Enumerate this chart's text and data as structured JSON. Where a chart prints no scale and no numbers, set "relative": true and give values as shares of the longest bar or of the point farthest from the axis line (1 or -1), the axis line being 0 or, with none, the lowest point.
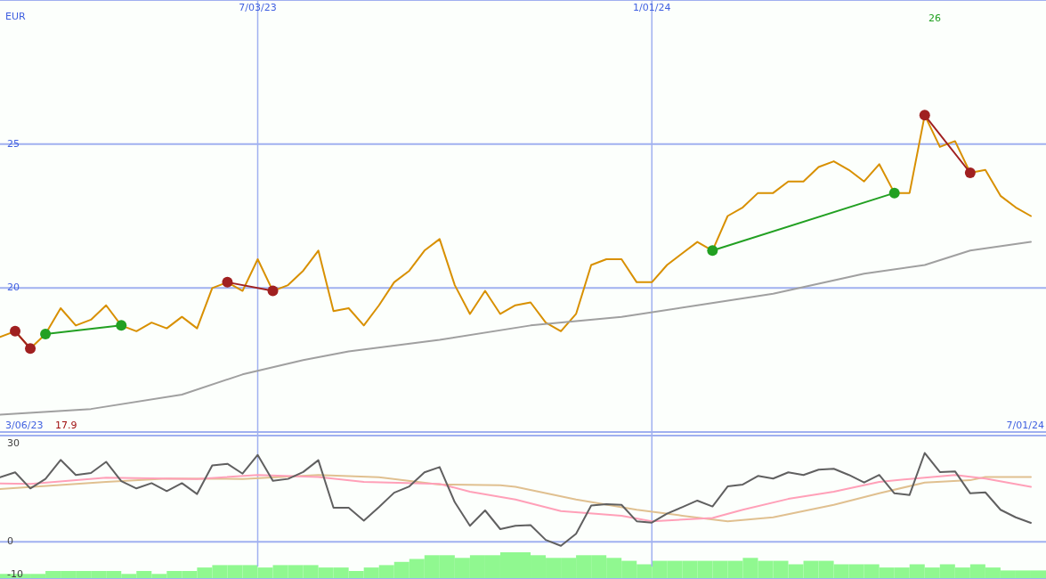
{
  "chart_data": [
    {
      "type": "line",
      "ylabel": "EUR",
      "x": [
        "2023-03-06",
        "2023-03-13",
        "2023-03-20",
        "2023-03-27",
        "2023-04-03",
        "2023-04-10",
        "2023-04-17",
        "2023-04-24",
        "2023-05-01",
        "2023-05-08",
        "2023-05-15",
        "2023-05-22",
        "2023-05-29",
        "2023-06-05",
        "2023-06-12",
        "2023-06-19",
        "2023-06-26",
        "2023-07-03",
        "2023-07-10",
        "2023-07-17",
        "2023-07-24",
        "2023-07-31",
        "2023-08-07",
        "2023-08-14",
        "2023-08-21",
        "2023-08-28",
        "2023-09-04",
        "2023-09-11",
        "2023-09-18",
        "2023-09-25",
        "2023-10-02",
        "2023-10-09",
        "2023-10-16",
        "2023-10-23",
        "2023-10-30",
        "2023-11-06",
        "2023-11-13",
        "2023-11-20",
        "2023-11-27",
        "2023-12-04",
        "2023-12-11",
        "2023-12-18",
        "2023-12-25",
        "2024-01-01",
        "2024-01-08",
        "2024-01-15",
        "2024-01-22",
        "2024-01-29",
        "2024-02-05",
        "2024-02-12",
        "2024-02-19",
        "2024-02-26",
        "2024-03-04",
        "2024-03-11",
        "2024-03-18",
        "2024-03-25",
        "2024-04-01",
        "2024-04-08",
        "2024-04-15",
        "2024-04-22",
        "2024-04-29",
        "2024-05-06",
        "2024-05-13",
        "2024-05-20",
        "2024-05-27",
        "2024-06-03",
        "2024-06-10",
        "2024-06-17",
        "2024-06-24"
      ],
      "series": [
        {
          "color": "#d89000",
          "values": [
            18.3,
            18.5,
            17.9,
            18.4,
            19.3,
            18.7,
            18.9,
            19.4,
            18.7,
            18.5,
            18.8,
            18.6,
            19.0,
            18.6,
            20.0,
            20.2,
            19.9,
            21.0,
            19.9,
            20.1,
            20.6,
            21.3,
            19.2,
            19.3,
            18.7,
            19.4,
            20.2,
            20.6,
            21.3,
            21.7,
            20.1,
            19.1,
            19.9,
            19.1,
            19.4,
            19.5,
            18.8,
            18.5,
            19.1,
            20.8,
            21.0,
            21.0,
            20.2,
            20.2,
            20.8,
            21.2,
            21.6,
            21.3,
            22.5,
            22.8,
            23.3,
            23.3,
            23.7,
            23.7,
            24.2,
            24.4,
            24.1,
            23.7,
            24.3,
            23.3,
            23.3,
            26.0,
            24.9,
            25.1,
            24.0,
            24.1,
            23.2,
            22.8,
            22.5
          ]
        },
        {
          "color": "#a0a0a0",
          "x": [
            "2023-03-06",
            "2023-04-17",
            "2023-05-29",
            "2023-06-26",
            "2023-07-24",
            "2023-08-14",
            "2023-09-25",
            "2023-11-06",
            "2023-12-18",
            "2024-01-22",
            "2024-02-26",
            "2024-04-08",
            "2024-05-06",
            "2024-05-27",
            "2024-06-24"
          ],
          "values": [
            15.6,
            15.8,
            16.3,
            17.0,
            17.5,
            17.8,
            18.2,
            18.7,
            19.0,
            19.4,
            19.8,
            20.5,
            20.8,
            21.3,
            21.6
          ]
        },
        {
          "color": "#22a022",
          "marker": "circle",
          "x": [
            "2023-03-27",
            "2023-05-01",
            "2023-05-08",
            "2024-01-29",
            "2024-04-22"
          ],
          "values": [
            18.4,
            18.7,
            null,
            21.3,
            23.3
          ]
        },
        {
          "color": "#a02020",
          "marker": "circle",
          "x": [
            "2023-03-13",
            "2023-03-20",
            "2023-03-27",
            "2023-06-19",
            "2023-07-10",
            "2023-07-17",
            "2024-05-06",
            "2024-05-27"
          ],
          "values": [
            18.5,
            17.9,
            null,
            20.2,
            19.9,
            null,
            26.0,
            24.0
          ]
        }
      ],
      "xlim": [
        "2023-03-06",
        "2024-07-01"
      ],
      "xticks": [
        {
          "value": "2023-07-03",
          "label": "7/03/23"
        },
        {
          "value": "2024-01-01",
          "label": "1/01/24"
        }
      ],
      "ylim": [
        15,
        30
      ],
      "yticks": [
        20,
        25
      ],
      "grid": true,
      "annotations": [
        "3/06/23",
        "17.9",
        "26",
        "7/01/24"
      ]
    },
    {
      "type": "line",
      "series": [
        {
          "color": "#e0c090",
          "x": [
            "2023-03-06",
            "2023-04-24",
            "2023-05-22",
            "2023-06-26",
            "2023-07-31",
            "2023-08-28",
            "2023-09-25",
            "2023-10-23",
            "2023-10-30",
            "2023-11-27",
            "2023-12-25",
            "2024-01-15",
            "2024-02-05",
            "2024-02-26",
            "2024-03-25",
            "2024-04-15",
            "2024-05-06",
            "2024-05-27",
            "2024-06-03",
            "2024-06-24"
          ],
          "values": [
            16.1,
            18.3,
            19.3,
            19.2,
            20.4,
            19.7,
            17.5,
            17.3,
            16.8,
            12.9,
            9.8,
            8.0,
            6.3,
            7.5,
            11.3,
            14.8,
            18.1,
            18.8,
            19.8,
            19.8
          ]
        },
        {
          "color": "#ffa0b8",
          "x": [
            "2023-03-06",
            "2023-03-20",
            "2023-04-24",
            "2023-06-05",
            "2023-07-03",
            "2023-07-31",
            "2023-08-21",
            "2023-09-25",
            "2023-10-09",
            "2023-10-30",
            "2023-11-20",
            "2023-12-18",
            "2024-01-01",
            "2024-01-29",
            "2024-02-12",
            "2024-03-04",
            "2024-03-25",
            "2024-04-15",
            "2024-05-06",
            "2024-05-20",
            "2024-06-03",
            "2024-06-24"
          ],
          "values": [
            17.8,
            17.7,
            19.6,
            19.2,
            20.4,
            19.8,
            18.3,
            17.7,
            15.3,
            12.9,
            9.4,
            8.0,
            6.3,
            7.3,
            9.8,
            13.1,
            15.3,
            18.3,
            19.6,
            20.4,
            19.3,
            16.8
          ]
        },
        {
          "color": "#606060",
          "x": [
            "2023-03-06",
            "2023-03-13",
            "2023-03-20",
            "2023-03-27",
            "2023-04-03",
            "2023-04-10",
            "2023-04-17",
            "2023-04-24",
            "2023-05-01",
            "2023-05-08",
            "2023-05-15",
            "2023-05-22",
            "2023-05-29",
            "2023-06-05",
            "2023-06-12",
            "2023-06-19",
            "2023-06-26",
            "2023-07-03",
            "2023-07-10",
            "2023-07-17",
            "2023-07-24",
            "2023-07-31",
            "2023-08-07",
            "2023-08-14",
            "2023-08-21",
            "2023-08-28",
            "2023-09-04",
            "2023-09-11",
            "2023-09-18",
            "2023-09-25",
            "2023-10-02",
            "2023-10-09",
            "2023-10-16",
            "2023-10-23",
            "2023-10-30",
            "2023-11-06",
            "2023-11-13",
            "2023-11-20",
            "2023-11-27",
            "2023-12-04",
            "2023-12-11",
            "2023-12-18",
            "2023-12-25",
            "2024-01-01",
            "2024-01-08",
            "2024-01-15",
            "2024-01-22",
            "2024-01-29",
            "2024-02-05",
            "2024-02-12",
            "2024-02-19",
            "2024-02-26",
            "2024-03-04",
            "2024-03-11",
            "2024-03-18",
            "2024-03-25",
            "2024-04-01",
            "2024-04-08",
            "2024-04-15",
            "2024-04-22",
            "2024-04-29",
            "2024-05-06",
            "2024-05-13",
            "2024-05-20",
            "2024-05-27",
            "2024-06-03",
            "2024-06-10",
            "2024-06-17",
            "2024-06-24"
          ],
          "values": [
            19.7,
            21.2,
            16.3,
            19.2,
            25.0,
            20.4,
            21.0,
            24.4,
            18.5,
            16.3,
            17.9,
            15.5,
            17.9,
            14.6,
            23.3,
            23.8,
            20.8,
            26.5,
            18.6,
            19.2,
            21.3,
            24.9,
            10.4,
            10.4,
            6.5,
            10.6,
            15.0,
            16.9,
            21.2,
            22.8,
            12.1,
            4.9,
            9.6,
            3.9,
            4.9,
            5.1,
            0.6,
            -1.2,
            2.5,
            11.1,
            11.5,
            11.3,
            6.3,
            5.9,
            8.6,
            10.6,
            12.6,
            10.8,
            16.9,
            17.5,
            20.1,
            19.3,
            21.2,
            20.4,
            22.0,
            22.3,
            20.4,
            18.1,
            20.4,
            14.8,
            14.3,
            27.1,
            21.3,
            21.5,
            14.8,
            15.1,
            9.8,
            7.5,
            5.8
          ]
        }
      ],
      "xlim": [
        "2023-03-06",
        "2024-07-01"
      ],
      "ylim": [
        -11.3,
        32.4
      ],
      "yticks": [
        30,
        0,
        -10
      ],
      "tick_labels": "y",
      "ref_lines": [
        {
          "axis": "y",
          "value": 0
        }
      ]
    },
    {
      "type": "bar",
      "relative": true,
      "color": "#90f890",
      "categories": [
        null,
        null,
        null,
        null,
        null,
        null,
        null,
        null,
        null,
        null,
        null,
        null,
        null,
        null,
        null,
        null,
        null,
        null,
        null,
        null,
        null,
        null,
        null,
        null,
        null,
        null,
        null,
        null,
        null,
        null,
        null,
        null,
        null,
        null,
        null,
        null,
        null,
        null,
        null,
        null,
        null,
        null,
        null,
        null,
        null,
        null,
        null,
        null,
        null,
        null,
        null,
        null,
        null,
        null,
        null,
        null,
        null,
        null,
        null,
        null,
        null,
        null,
        null,
        null,
        null,
        null,
        null,
        null,
        null
      ],
      "values": [
        0.19,
        0.19,
        0.19,
        0.3,
        0.3,
        0.3,
        0.3,
        0.3,
        0.19,
        0.3,
        0.19,
        0.3,
        0.3,
        0.43,
        0.52,
        0.52,
        0.52,
        0.43,
        0.52,
        0.52,
        0.52,
        0.43,
        0.43,
        0.3,
        0.43,
        0.52,
        0.64,
        0.75,
        0.89,
        0.89,
        0.79,
        0.89,
        0.89,
        1,
        1,
        0.89,
        0.79,
        0.79,
        0.89,
        0.89,
        0.79,
        0.68,
        0.55,
        0.68,
        0.68,
        0.68,
        0.68,
        0.68,
        0.68,
        0.79,
        0.68,
        0.68,
        0.55,
        0.68,
        0.68,
        0.55,
        0.55,
        0.55,
        0.43,
        0.43,
        0.55,
        0.43,
        0.55,
        0.43,
        0.55,
        0.43,
        0.32,
        0.32,
        0.32
      ],
      "tick_labels": false
    }
  ]
}
